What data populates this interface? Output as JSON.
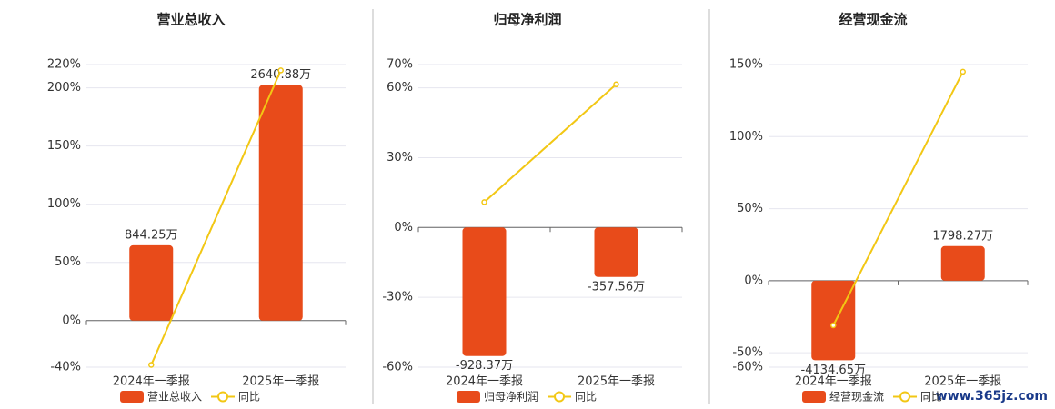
{
  "chart_data": [
    {
      "type": "bar",
      "title": "营业总收入",
      "categories": [
        "2024年一季报",
        "2025年一季报"
      ],
      "series": [
        {
          "name": "营业总收入",
          "type": "bar",
          "color": "#e84b1a",
          "values": [
            844.25,
            2640.88
          ],
          "value_labels": [
            "844.25万",
            "2640.88万"
          ]
        },
        {
          "name": "同比",
          "type": "line",
          "color": "#f2c714",
          "values": [
            -38,
            215
          ]
        }
      ],
      "ylim": [
        -40,
        220
      ],
      "yticks": [
        {
          "value": -40,
          "label": "-40%"
        },
        {
          "value": 0,
          "label": "0%"
        },
        {
          "value": 50,
          "label": "50%"
        },
        {
          "value": 100,
          "label": "100%"
        },
        {
          "value": 150,
          "label": "150%"
        },
        {
          "value": 200,
          "label": "200%"
        },
        {
          "value": 220,
          "label": "220%"
        }
      ],
      "grid": true
    },
    {
      "type": "bar",
      "title": "归母净利润",
      "categories": [
        "2024年一季报",
        "2025年一季报"
      ],
      "series": [
        {
          "name": "归母净利润",
          "type": "bar",
          "color": "#e84b1a",
          "values": [
            -928.37,
            -357.56
          ],
          "value_labels": [
            "-928.37万",
            "-357.56万"
          ]
        },
        {
          "name": "同比",
          "type": "line",
          "color": "#f2c714",
          "values": [
            10.9,
            61.5
          ]
        }
      ],
      "ylim": [
        -60,
        70
      ],
      "yticks": [
        {
          "value": -60,
          "label": "-60%"
        },
        {
          "value": -30,
          "label": "-30%"
        },
        {
          "value": 0,
          "label": "0%"
        },
        {
          "value": 30,
          "label": "30%"
        },
        {
          "value": 60,
          "label": "60%"
        },
        {
          "value": 70,
          "label": "70%"
        }
      ],
      "grid": true
    },
    {
      "type": "bar",
      "title": "经营现金流",
      "categories": [
        "2024年一季报",
        "2025年一季报"
      ],
      "series": [
        {
          "name": "经营现金流",
          "type": "bar",
          "color": "#e84b1a",
          "values": [
            -4134.65,
            1798.27
          ],
          "value_labels": [
            "-4134.65万",
            "1798.27万"
          ]
        },
        {
          "name": "同比",
          "type": "line",
          "color": "#f2c714",
          "values": [
            -31,
            145
          ]
        }
      ],
      "ylim": [
        -60,
        150
      ],
      "yticks": [
        {
          "value": -60,
          "label": "-60%"
        },
        {
          "value": -50,
          "label": "-50%"
        },
        {
          "value": 0,
          "label": "0%"
        },
        {
          "value": 50,
          "label": "50%"
        },
        {
          "value": 100,
          "label": "100%"
        },
        {
          "value": 150,
          "label": "150%"
        }
      ],
      "grid": true
    }
  ],
  "watermark": "www.365jz.com"
}
